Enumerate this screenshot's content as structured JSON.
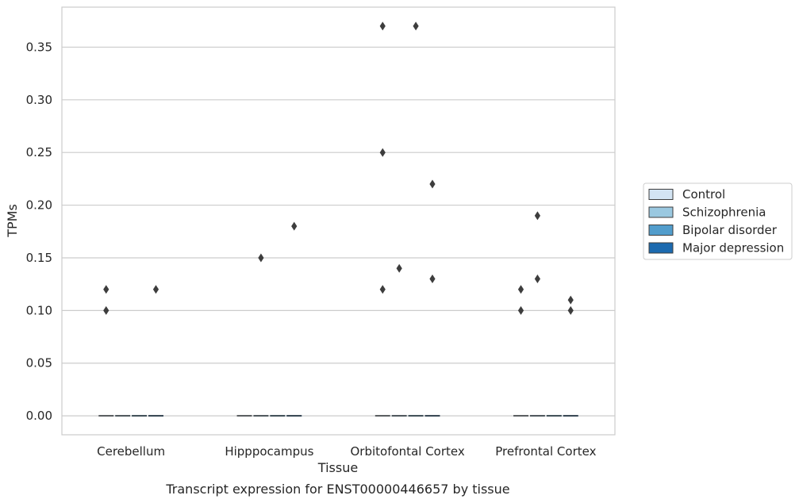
{
  "chart_data": {
    "type": "box",
    "title": "",
    "caption": "Transcript expression for ENST00000446657 by tissue",
    "xlabel": "Tissue",
    "ylabel": "TPMs",
    "ylim": [
      -0.018,
      0.388
    ],
    "yticks": [
      "0.00",
      "0.05",
      "0.10",
      "0.15",
      "0.20",
      "0.25",
      "0.30",
      "0.35"
    ],
    "grid": "horizontal",
    "legend_position": "right",
    "categories": [
      "Cerebellum",
      "Hipppocampus",
      "Orbitofontal Cortex",
      "Prefrontal Cortex"
    ],
    "series": [
      {
        "name": "Control",
        "color": "#d3e4f3",
        "medians": [
          0,
          0,
          0,
          0
        ],
        "outliers": [
          [
            0.12,
            0.1
          ],
          [],
          [
            0.37,
            0.25,
            0.12
          ],
          [
            0.12,
            0.1
          ]
        ]
      },
      {
        "name": "Schizophrenia",
        "color": "#9ac8e0",
        "medians": [
          0,
          0,
          0,
          0
        ],
        "outliers": [
          [],
          [
            0.15
          ],
          [
            0.14
          ],
          [
            0.19,
            0.13
          ]
        ]
      },
      {
        "name": "Bipolar disorder",
        "color": "#529dcc",
        "medians": [
          0,
          0,
          0,
          0
        ],
        "outliers": [
          [],
          [],
          [
            0.37
          ],
          []
        ]
      },
      {
        "name": "Major depression",
        "color": "#1c6aaf",
        "medians": [
          0,
          0,
          0,
          0
        ],
        "outliers": [
          [
            0.12
          ],
          [
            0.18
          ],
          [
            0.22,
            0.13
          ],
          [
            0.11,
            0.1
          ]
        ]
      }
    ],
    "colors": {
      "grid": "#cccccc",
      "frame": "#cccccc",
      "outlier": "#3d3d3d",
      "median": "#3d3d3d"
    }
  }
}
